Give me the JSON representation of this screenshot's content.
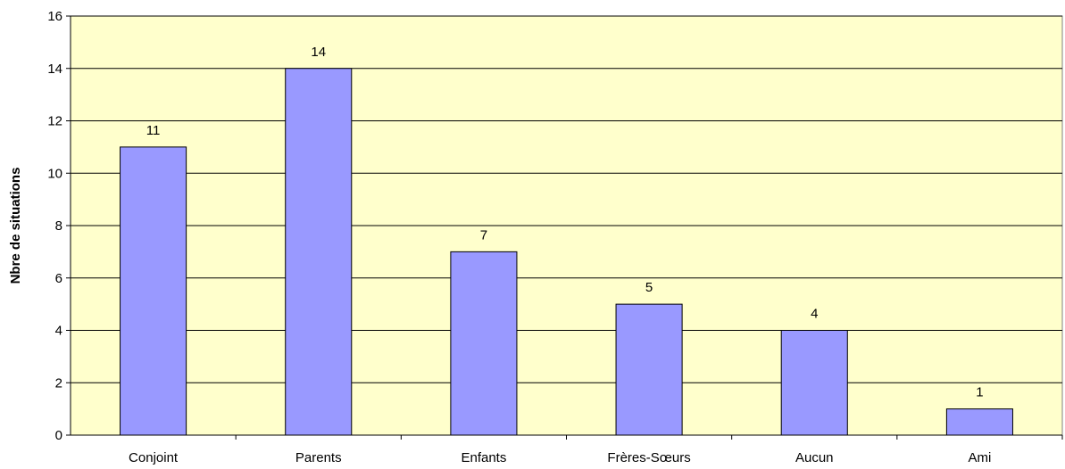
{
  "chart_data": {
    "type": "bar",
    "categories": [
      "Conjoint",
      "Parents",
      "Enfants",
      "Frères-Sœurs",
      "Aucun",
      "Ami"
    ],
    "values": [
      11,
      14,
      7,
      5,
      4,
      1
    ],
    "data_labels": [
      "11",
      "14",
      "7",
      "5",
      "4",
      "1"
    ],
    "title": "",
    "xlabel": "",
    "ylabel": "Nbre de situations",
    "ylim": [
      0,
      16
    ],
    "yticks": [
      0,
      2,
      4,
      6,
      8,
      10,
      12,
      14,
      16
    ],
    "grid": true,
    "legend": "none",
    "colors": {
      "bar_fill": "#9999ff",
      "bar_stroke": "#000000",
      "plot_background": "#ffffcc",
      "gridline": "#000000"
    }
  }
}
